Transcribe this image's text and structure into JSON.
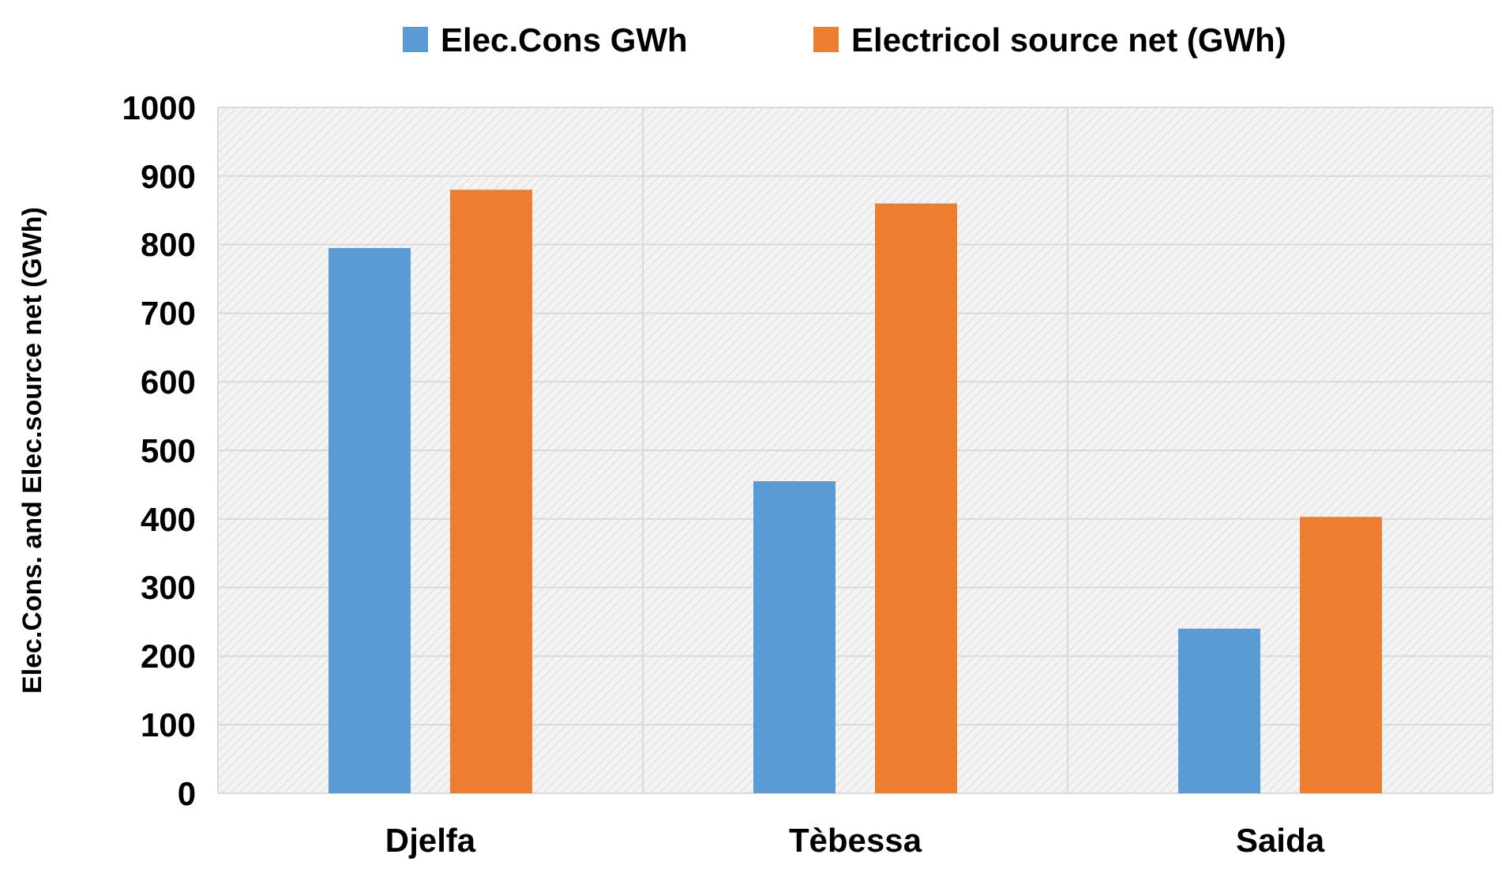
{
  "chart_data": {
    "type": "bar",
    "ylabel": "Elec.Cons. and Elec.source net (GWh)",
    "categories": [
      "Djelfa",
      "Tèbessa",
      "Saida"
    ],
    "series": [
      {
        "name": "Elec.Cons GWh",
        "color": "#5b9bd5",
        "values": [
          795,
          455,
          240
        ]
      },
      {
        "name": "Electricol source net (GWh)",
        "color": "#ed7d31",
        "values": [
          880,
          860,
          403
        ]
      }
    ],
    "ylim": [
      0,
      1000
    ],
    "yticks": [
      0,
      100,
      200,
      300,
      400,
      500,
      600,
      700,
      800,
      900,
      1000
    ],
    "grid": true,
    "legend": "top"
  }
}
